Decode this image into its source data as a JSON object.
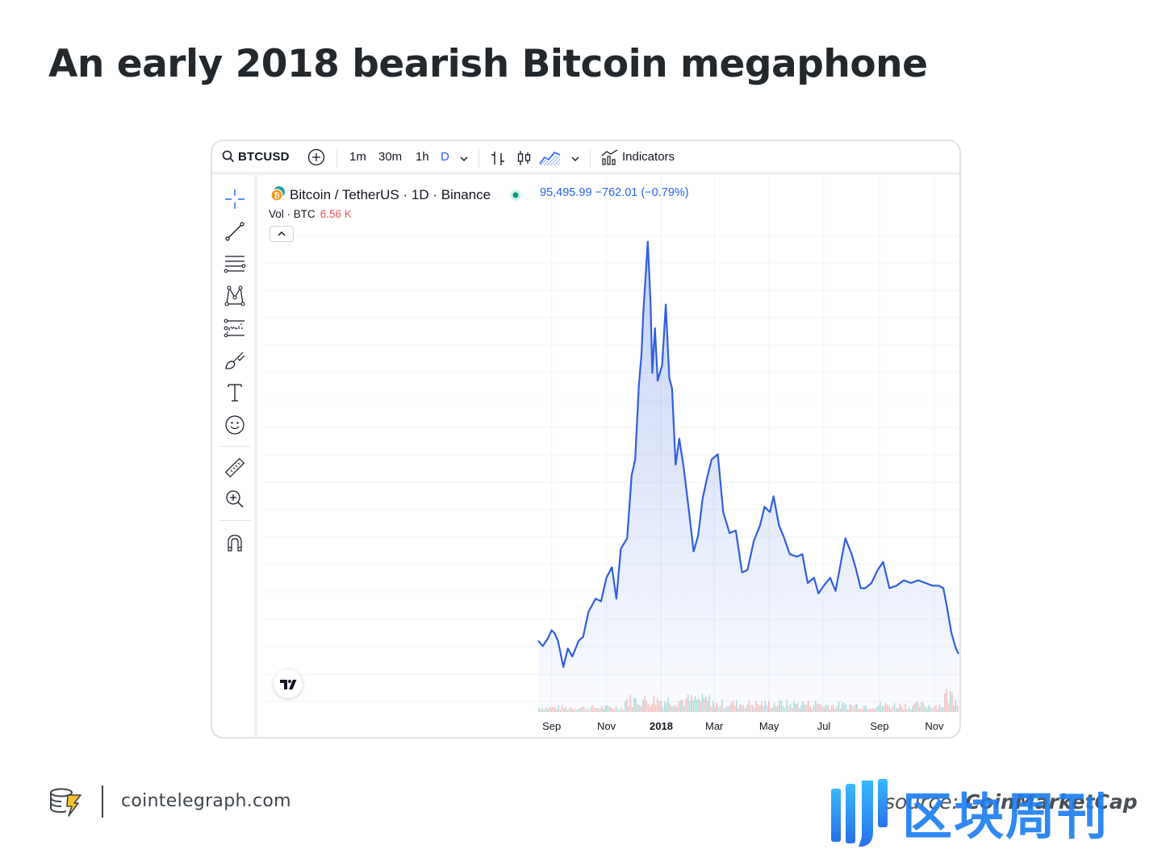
{
  "headline": "An early 2018 bearish Bitcoin megaphone",
  "toolbar": {
    "symbol": "BTCUSD",
    "intervals": [
      "1m",
      "30m",
      "1h",
      "D"
    ],
    "active_interval": "D",
    "indicators_label": "Indicators"
  },
  "legend": {
    "pair": "Bitcoin / TetherUS · 1D · Binance",
    "quote": "95,495.99  −762.01 (−0.79%)",
    "vol_label": "Vol · BTC",
    "vol_value": "6.56 K"
  },
  "footer": {
    "site": "cointelegraph.com",
    "source_prefix": "source: ",
    "source_name": "CoinMarketCap",
    "watermark_text": "区块周刊"
  },
  "colors": {
    "line": "#2f5fe0",
    "vol_up": "#26a69a",
    "vol_down": "#ef5350"
  },
  "chart_data": {
    "type": "area",
    "xlabel": "",
    "ylabel": "",
    "tick_labels": [
      "Sep",
      "Nov",
      "2018",
      "Mar",
      "May",
      "Jul",
      "Sep",
      "Nov"
    ],
    "tick_dates": [
      "2017-09-01",
      "2017-11-01",
      "2018-01-01",
      "2018-03-01",
      "2018-05-01",
      "2018-07-01",
      "2018-09-01",
      "2018-11-01"
    ],
    "x_range": [
      "2017-08-17",
      "2018-11-28"
    ],
    "y_range": [
      3000,
      20500
    ],
    "series": [
      {
        "x": [
          "2017-08-17",
          "2017-08-22",
          "2017-08-28",
          "2017-09-01",
          "2017-09-04",
          "2017-09-08",
          "2017-09-14",
          "2017-09-19",
          "2017-09-24",
          "2017-10-01",
          "2017-10-06",
          "2017-10-12",
          "2017-10-20",
          "2017-10-26",
          "2017-11-01",
          "2017-11-07",
          "2017-11-12",
          "2017-11-17",
          "2017-11-24",
          "2017-11-29",
          "2017-12-03",
          "2017-12-07",
          "2017-12-10",
          "2017-12-12",
          "2017-12-17",
          "2017-12-20",
          "2017-12-22",
          "2017-12-25",
          "2017-12-28",
          "2018-01-02",
          "2018-01-06",
          "2018-01-10",
          "2018-01-13",
          "2018-01-17",
          "2018-01-21",
          "2018-01-26",
          "2018-02-01",
          "2018-02-06",
          "2018-02-11",
          "2018-02-16",
          "2018-02-21",
          "2018-02-26",
          "2018-03-05",
          "2018-03-11",
          "2018-03-18",
          "2018-03-25",
          "2018-04-01",
          "2018-04-07",
          "2018-04-14",
          "2018-04-21",
          "2018-04-26",
          "2018-05-02",
          "2018-05-06",
          "2018-05-12",
          "2018-05-18",
          "2018-05-24",
          "2018-06-01",
          "2018-06-07",
          "2018-06-13",
          "2018-06-20",
          "2018-06-25",
          "2018-07-01",
          "2018-07-08",
          "2018-07-14",
          "2018-07-20",
          "2018-07-25",
          "2018-08-01",
          "2018-08-06",
          "2018-08-11",
          "2018-08-16",
          "2018-08-23",
          "2018-08-30",
          "2018-09-05",
          "2018-09-12",
          "2018-09-20",
          "2018-09-28",
          "2018-10-06",
          "2018-10-14",
          "2018-10-22",
          "2018-10-30",
          "2018-11-06",
          "2018-11-11",
          "2018-11-15",
          "2018-11-20",
          "2018-11-25",
          "2018-11-28"
        ],
        "y": [
          4300,
          4100,
          4400,
          4700,
          4600,
          4300,
          3300,
          4000,
          3700,
          4300,
          4450,
          5400,
          5900,
          5800,
          6700,
          7100,
          5900,
          7800,
          8200,
          10600,
          11200,
          14000,
          15200,
          16800,
          19500,
          17200,
          14500,
          16200,
          14200,
          14800,
          17100,
          14300,
          13900,
          11000,
          12000,
          10900,
          9200,
          7700,
          8300,
          9700,
          10500,
          11200,
          11400,
          9200,
          8400,
          8500,
          6900,
          7000,
          8100,
          8700,
          9400,
          9200,
          9800,
          8700,
          8200,
          7600,
          7500,
          7600,
          6500,
          6700,
          6100,
          6400,
          6700,
          6200,
          7300,
          8200,
          7600,
          7000,
          6300,
          6300,
          6500,
          7000,
          7300,
          6300,
          6400,
          6600,
          6500,
          6600,
          6500,
          6400,
          6400,
          6300,
          5600,
          4600,
          4000,
          3800
        ]
      }
    ]
  }
}
